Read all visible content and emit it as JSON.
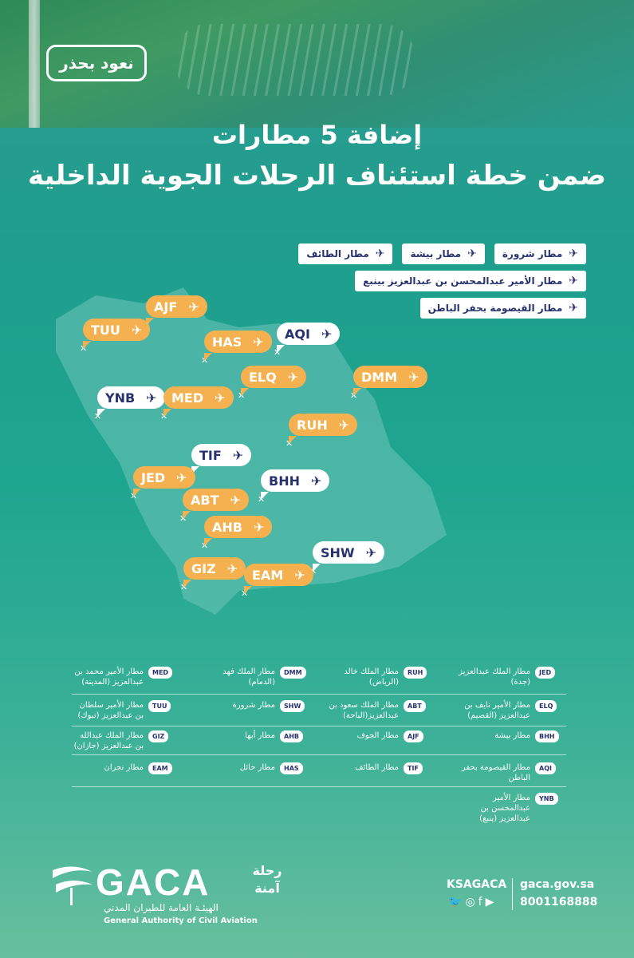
{
  "badge": "نعود بحذر",
  "title_line1": "إضافة 5 مطارات",
  "title_line2": "ضمن خطة استئناف الرحلات الجوية الداخلية",
  "new_airports": [
    [
      "مطار شرورة",
      "مطار بيشة",
      "مطار الطائف"
    ],
    [
      "مطار الأمير عبدالمحسن بن عبدالعزيز بينبع"
    ],
    [
      "مطار القيصومة بحفر الباطن"
    ]
  ],
  "map_labels": {
    "AJF": "AJF",
    "TUU": "TUU",
    "HAS": "HAS",
    "AQI": "AQI",
    "DMM": "DMM",
    "ELQ": "ELQ",
    "YNB": "YNB",
    "MED": "MED",
    "RUH": "RUH",
    "TIF": "TIF",
    "JED": "JED",
    "ABT": "ABT",
    "BHH": "BHH",
    "AHB": "AHB",
    "SHW": "SHW",
    "GIZ": "GIZ",
    "EAM": "EAM"
  },
  "table": {
    "r1": [
      {
        "code": "JED",
        "name": "مطار الملك عبدالعزيز (جدة)"
      },
      {
        "code": "RUH",
        "name": "مطار الملك خالد (الرياض)"
      },
      {
        "code": "DMM",
        "name": "مطار الملك فهد (الدمام)"
      },
      {
        "code": "MED",
        "name": "مطار الأمير محمد بن عبدالعزيز (المدينة)"
      }
    ],
    "r2": [
      {
        "code": "ELQ",
        "name": "مطار الأمير نايف بن عبدالعزيز (القصيم)"
      },
      {
        "code": "ABT",
        "name": "مطار الملك سعود بن عبدالعزيز(الباحة)"
      },
      {
        "code": "SHW",
        "name": "مطار شرورة"
      },
      {
        "code": "TUU",
        "name": "مطار الأمير سلطان بن عبدالعزيز (تبوك)"
      }
    ],
    "r3": [
      {
        "code": "BHH",
        "name": "مطار بيشة"
      },
      {
        "code": "AJF",
        "name": "مطار الجوف"
      },
      {
        "code": "AHB",
        "name": "مطار أبها"
      },
      {
        "code": "GIZ",
        "name": "مطار الملك عبدالله بن عبدالعزيز (جازان)"
      }
    ],
    "r4": [
      {
        "code": "AQI",
        "name": "مطار القيصومة بحفر الباطن"
      },
      {
        "code": "TIF",
        "name": "مطار الطائف"
      },
      {
        "code": "HAS",
        "name": "مطار حائل"
      },
      {
        "code": "EAM",
        "name": "مطار نجران"
      }
    ],
    "r5": [
      {
        "code": "YNB",
        "name": "مطار الأمير عبدالمحسن بن عبدالعزيز (ينبع)"
      }
    ]
  },
  "footer": {
    "logo_word": "GACA",
    "logo_ar": "الهيئـة العامة للطيران المدني",
    "logo_en": "General Authority of Civil Aviation",
    "rehla": "رحلة آمنة",
    "handle": "KSAGACA",
    "site": "gaca.gov.sa",
    "phone": "8001168888"
  },
  "colors": {
    "orange": "#f5b14f",
    "navy": "#28326f",
    "teal": "#1ea58f"
  }
}
